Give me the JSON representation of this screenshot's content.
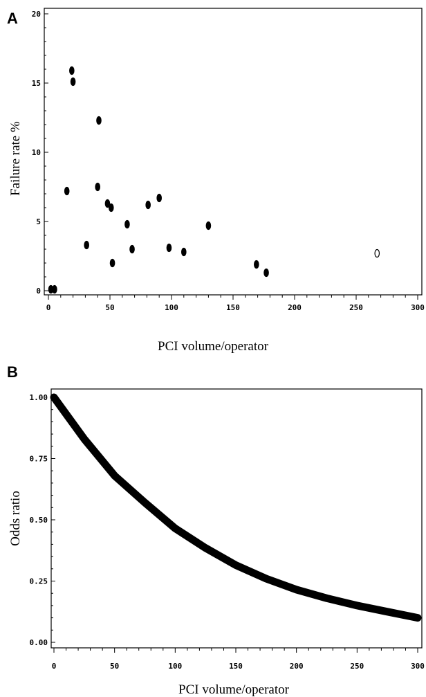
{
  "chart_data": [
    {
      "panel": "A",
      "type": "scatter",
      "xlabel": "PCI volume/operator",
      "ylabel": "Failure rate %",
      "xlim": [
        0,
        300
      ],
      "ylim": [
        0,
        20
      ],
      "xticks": [
        0,
        50,
        100,
        150,
        200,
        250,
        300
      ],
      "yticks": [
        0,
        5,
        10,
        15,
        20
      ],
      "points": [
        {
          "x": 2,
          "y": 0.1,
          "filled": true
        },
        {
          "x": 5,
          "y": 0.1,
          "filled": true
        },
        {
          "x": 15,
          "y": 7.2,
          "filled": true
        },
        {
          "x": 19,
          "y": 15.9,
          "filled": true
        },
        {
          "x": 20,
          "y": 15.1,
          "filled": true
        },
        {
          "x": 31,
          "y": 3.3,
          "filled": true
        },
        {
          "x": 40,
          "y": 7.5,
          "filled": true
        },
        {
          "x": 41,
          "y": 12.3,
          "filled": true
        },
        {
          "x": 48,
          "y": 6.3,
          "filled": true
        },
        {
          "x": 51,
          "y": 6.0,
          "filled": true
        },
        {
          "x": 52,
          "y": 2.0,
          "filled": true
        },
        {
          "x": 64,
          "y": 4.8,
          "filled": true
        },
        {
          "x": 68,
          "y": 3.0,
          "filled": true
        },
        {
          "x": 81,
          "y": 6.2,
          "filled": true
        },
        {
          "x": 90,
          "y": 6.7,
          "filled": true
        },
        {
          "x": 98,
          "y": 3.1,
          "filled": true
        },
        {
          "x": 110,
          "y": 2.8,
          "filled": true
        },
        {
          "x": 130,
          "y": 4.7,
          "filled": true
        },
        {
          "x": 169,
          "y": 1.9,
          "filled": true
        },
        {
          "x": 177,
          "y": 1.3,
          "filled": true
        },
        {
          "x": 267,
          "y": 2.7,
          "filled": false
        }
      ]
    },
    {
      "panel": "B",
      "type": "line",
      "xlabel": "PCI volume/operator",
      "ylabel": "Odds ratio",
      "xlim": [
        0,
        300
      ],
      "ylim": [
        0,
        1
      ],
      "xticks": [
        0,
        50,
        100,
        150,
        200,
        250,
        300
      ],
      "yticks": [
        0.0,
        0.25,
        0.5,
        0.75,
        1.0
      ],
      "ytick_labels": [
        "0.00",
        "0.25",
        "0.50",
        "0.75",
        "1.00"
      ],
      "series": [
        {
          "x": [
            0,
            25,
            50,
            75,
            100,
            125,
            150,
            175,
            200,
            225,
            250,
            275,
            300
          ],
          "values": [
            1.0,
            0.83,
            0.68,
            0.57,
            0.465,
            0.385,
            0.315,
            0.26,
            0.215,
            0.18,
            0.15,
            0.125,
            0.1
          ]
        }
      ]
    }
  ],
  "panels": {
    "a_letter": "A",
    "b_letter": "B"
  }
}
